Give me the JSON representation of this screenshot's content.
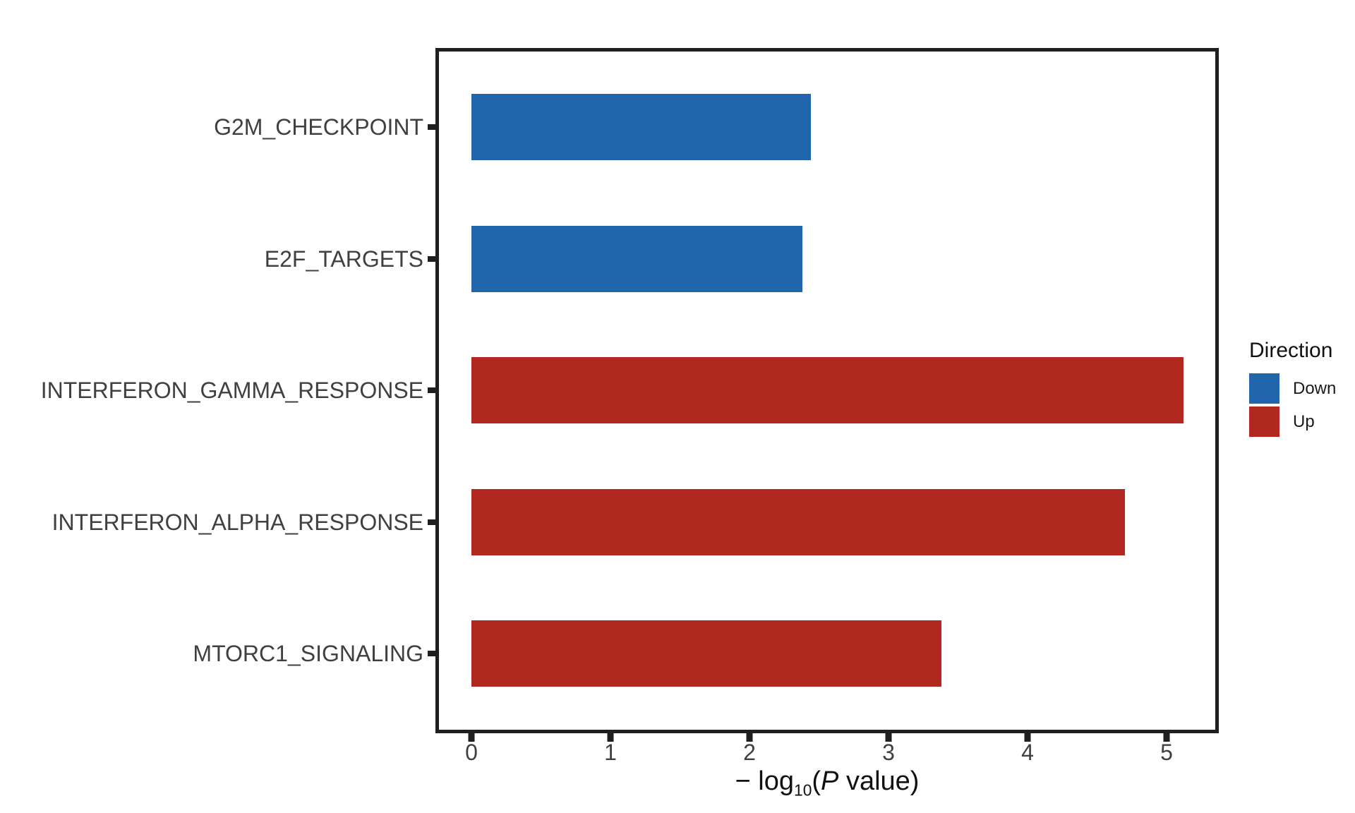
{
  "chart_data": {
    "type": "bar",
    "orientation": "horizontal",
    "title": "",
    "xlabel_plain": "-log10(P value)",
    "xlabel": {
      "pre": "− log",
      "sub": "10",
      "paren_open": "(",
      "p": "P",
      "post": " value)"
    },
    "categories": [
      "G2M_CHECKPOINT",
      "E2F_TARGETS",
      "INTERFERON_GAMMA_RESPONSE",
      "INTERFERON_ALPHA_RESPONSE",
      "MTORC1_SIGNALING"
    ],
    "values": [
      2.44,
      2.38,
      5.12,
      4.7,
      3.38
    ],
    "directions": [
      "Down",
      "Down",
      "Up",
      "Up",
      "Up"
    ],
    "x_ticks": [
      0,
      1,
      2,
      3,
      4,
      5
    ],
    "xlim": [
      0,
      5.36
    ],
    "grid": false,
    "bar_colors": {
      "Down": "#2166AC",
      "Up": "#B0281F"
    },
    "colors": {
      "background": "#FFFFFF",
      "panel_border": "#1F1F1F",
      "axis_text": "#404040",
      "axis_title": "#111111"
    },
    "legend": {
      "title": "Direction",
      "position": "right",
      "items": [
        {
          "label": "Down",
          "color": "#2166AC"
        },
        {
          "label": "Up",
          "color": "#B0281F"
        }
      ]
    }
  }
}
